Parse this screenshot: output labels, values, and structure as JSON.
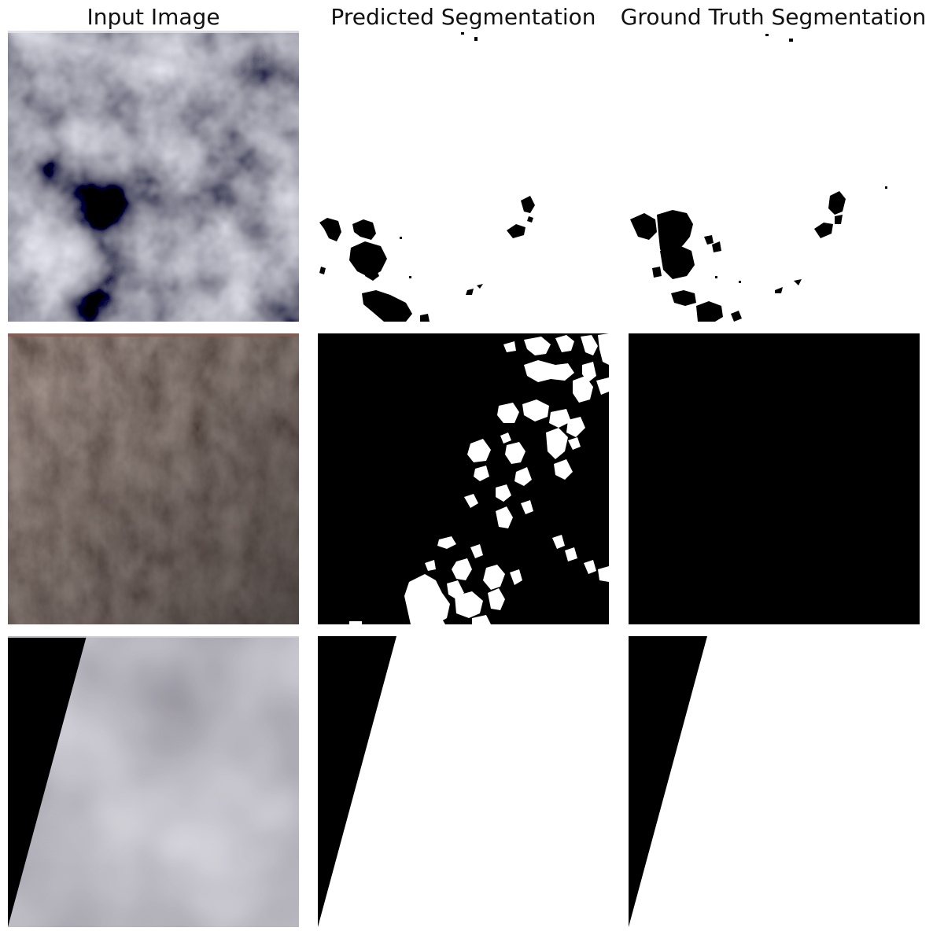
{
  "columns": {
    "input": "Input Image",
    "predicted": "Predicted Segmentation",
    "ground_truth": "Ground Truth Segmentation"
  },
  "colors": {
    "background": "#ffffff",
    "mask_black": "#000000",
    "mask_white": "#ffffff",
    "cloud_gray": "#6e6e74",
    "terrain_brown": "#2f2926",
    "haze_gray": "#86848b"
  }
}
